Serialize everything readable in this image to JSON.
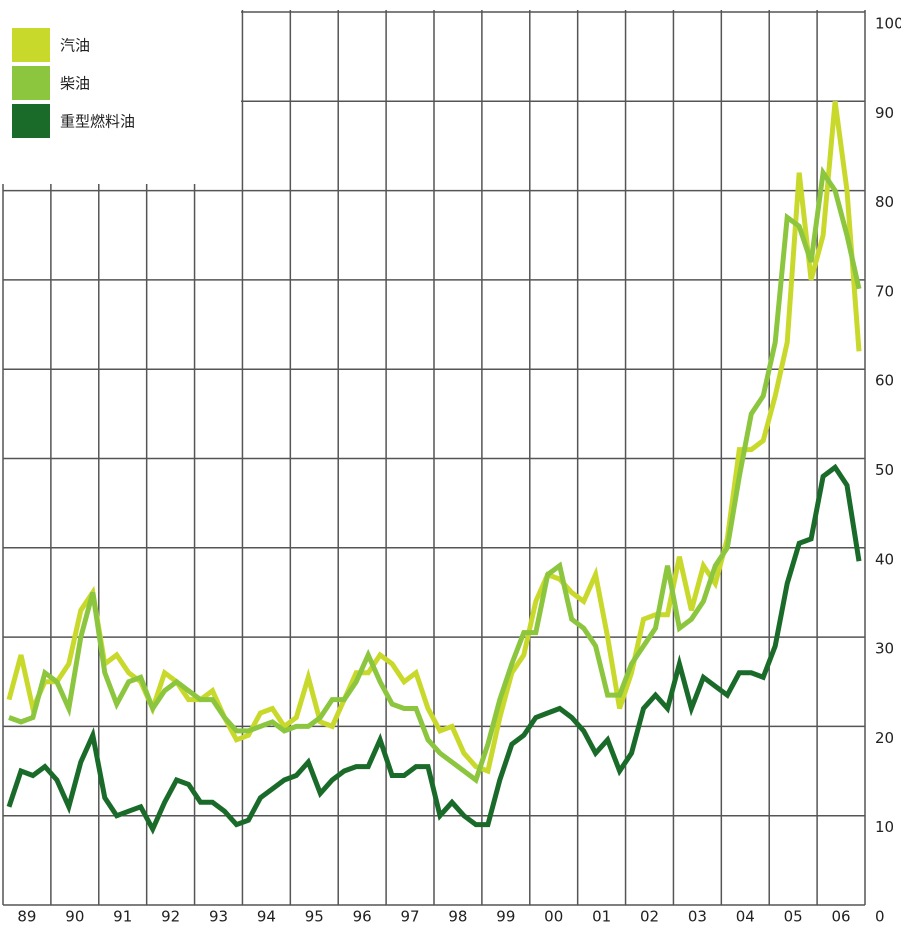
{
  "chart_data": {
    "type": "line",
    "x": [
      1989.125,
      1989.375,
      1989.625,
      1989.875,
      1990.125,
      1990.375,
      1990.625,
      1990.875,
      1991.125,
      1991.375,
      1991.625,
      1991.875,
      1992.125,
      1992.375,
      1992.625,
      1992.875,
      1993.125,
      1993.375,
      1993.625,
      1993.875,
      1994.125,
      1994.375,
      1994.625,
      1994.875,
      1995.125,
      1995.375,
      1995.625,
      1995.875,
      1996.125,
      1996.375,
      1996.625,
      1996.875,
      1997.125,
      1997.375,
      1997.625,
      1997.875,
      1998.125,
      1998.375,
      1998.625,
      1998.875,
      1999.125,
      1999.375,
      1999.625,
      1999.875,
      2000.125,
      2000.375,
      2000.625,
      2000.875,
      2001.125,
      2001.375,
      2001.625,
      2001.875,
      2002.125,
      2002.375,
      2002.625,
      2002.875,
      2003.125,
      2003.375,
      2003.625,
      2003.875,
      2004.125,
      2004.375,
      2004.625,
      2004.875,
      2005.125,
      2005.375,
      2005.625,
      2005.875,
      2006.125,
      2006.375,
      2006.625,
      2006.875
    ],
    "series": [
      {
        "name": "汽油",
        "color": "#c9d92b",
        "values": [
          23,
          28,
          22,
          25,
          25,
          27,
          33,
          35,
          27,
          28,
          26,
          25,
          22,
          26,
          25,
          23,
          23,
          24,
          21,
          18.5,
          19,
          21.5,
          22,
          20,
          21,
          25.5,
          20.5,
          20,
          23,
          26,
          26,
          28,
          27,
          25,
          26,
          22,
          19.5,
          20,
          17,
          15.5,
          15,
          21,
          26,
          28,
          34,
          37,
          36.5,
          35,
          34,
          37,
          30,
          22,
          26,
          32,
          32.5,
          32.5,
          39,
          33,
          38,
          36,
          41,
          51,
          51,
          52,
          57,
          63,
          82,
          70,
          75,
          90,
          80,
          62
        ]
      },
      {
        "name": "柴油",
        "color": "#8cc63f",
        "values": [
          21,
          20.5,
          21,
          26,
          25,
          22,
          30,
          35,
          26,
          22.5,
          25,
          25.5,
          22,
          24,
          25,
          24,
          23,
          23,
          21,
          19.5,
          19.5,
          20,
          20.5,
          19.5,
          20,
          20,
          21,
          23,
          23,
          25,
          28,
          25,
          22.5,
          22,
          22,
          18.5,
          17,
          16,
          15,
          14,
          18,
          23,
          27,
          30.5,
          30.5,
          37,
          38,
          32,
          31,
          29,
          23.5,
          23.5,
          27,
          29,
          31,
          38,
          31,
          32,
          34,
          38,
          40,
          48,
          55,
          57,
          63,
          77,
          76,
          72,
          82,
          80,
          75,
          69
        ]
      },
      {
        "name": "重型燃料油",
        "color": "#1a6b2a",
        "values": [
          11,
          15,
          14.5,
          15.5,
          14,
          11,
          16,
          19,
          12,
          10,
          10.5,
          11,
          8.5,
          11.5,
          14,
          13.5,
          11.5,
          11.5,
          10.5,
          9,
          9.5,
          12,
          13,
          14,
          14.5,
          16,
          12.5,
          14,
          15,
          15.5,
          15.5,
          18.5,
          14.5,
          14.5,
          15.5,
          15.5,
          10,
          11.5,
          10,
          9,
          9,
          14,
          18,
          19,
          21,
          21.5,
          22,
          21,
          19.5,
          17,
          18.5,
          15,
          17,
          22,
          23.5,
          22,
          27,
          22,
          25.5,
          24.5,
          23.5,
          26,
          26,
          25.5,
          29,
          36,
          40.5,
          41,
          48,
          49,
          47,
          38.5
        ]
      }
    ],
    "xlim": [
      1989,
      2007
    ],
    "xticks": [
      {
        "value": 1989.5,
        "label": "89"
      },
      {
        "value": 1990.5,
        "label": "90"
      },
      {
        "value": 1991.5,
        "label": "91"
      },
      {
        "value": 1992.5,
        "label": "92"
      },
      {
        "value": 1993.5,
        "label": "93"
      },
      {
        "value": 1994.5,
        "label": "94"
      },
      {
        "value": 1995.5,
        "label": "95"
      },
      {
        "value": 1996.5,
        "label": "96"
      },
      {
        "value": 1997.5,
        "label": "97"
      },
      {
        "value": 1998.5,
        "label": "98"
      },
      {
        "value": 1999.5,
        "label": "99"
      },
      {
        "value": 2000.5,
        "label": "00"
      },
      {
        "value": 2001.5,
        "label": "01"
      },
      {
        "value": 2002.5,
        "label": "02"
      },
      {
        "value": 2003.5,
        "label": "03"
      },
      {
        "value": 2004.5,
        "label": "04"
      },
      {
        "value": 2005.5,
        "label": "05"
      },
      {
        "value": 2006.5,
        "label": "06"
      }
    ],
    "ylim": [
      0,
      100
    ],
    "yticks": [
      0,
      10,
      20,
      30,
      40,
      50,
      60,
      70,
      80,
      90,
      100
    ],
    "grid": true,
    "legend": "top-left"
  }
}
